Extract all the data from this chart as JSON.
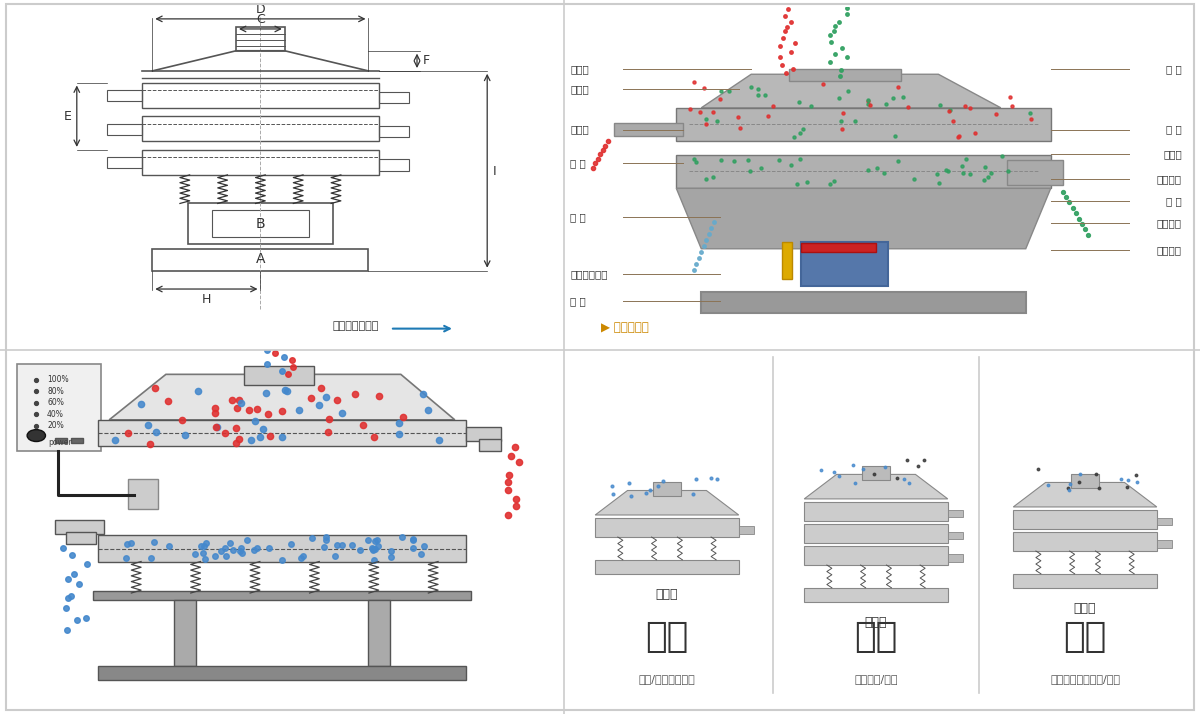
{
  "bg_color": "#ffffff",
  "border_color": "#cccccc",
  "red_dot_color": "#e03030",
  "blue_dot_color": "#4488cc",
  "green_dot_color": "#30a060",
  "line_color": "#8b7355",
  "dim_line_color": "#555555",
  "labels_left": [
    "进料口",
    "防尘盖",
    "出料口",
    "束 环",
    "弹 簧",
    "运输固定螺栓",
    "机 坐"
  ],
  "labels_right": [
    "筛 网",
    "网 架",
    "加重块",
    "上部重锤",
    "筛 盘",
    "振动电机",
    "下部重锤"
  ],
  "caption_left": "外形尺寸示意图",
  "caption_right": "结构示意图",
  "sec1_title": "分级",
  "sec1_sub": "单层式",
  "sec1_desc": "颗粒/粉末准确分级",
  "sec2_title": "过滤",
  "sec2_sub": "三层式",
  "sec2_desc": "去除异物/结块",
  "sec3_title": "除杂",
  "sec3_sub": "双层式",
  "sec3_desc": "去除液体中的颗粒/异物",
  "power_label": "power"
}
